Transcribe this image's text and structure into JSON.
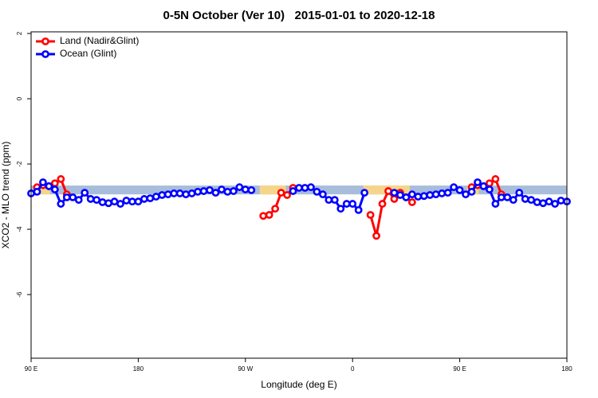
{
  "chart_data": {
    "type": "line",
    "title": "0-5N October (Ver 10)   2015-01-01 to 2020-12-18",
    "xlabel": "Longitude (deg E)",
    "ylabel": "XCO2 - MLO trend (ppm)",
    "xlim": [
      90,
      540
    ],
    "ylim": [
      -7.95,
      2.05
    ],
    "xticks": [
      {
        "value": 90,
        "label": "90 E"
      },
      {
        "value": 180,
        "label": "180"
      },
      {
        "value": 270,
        "label": "90 W"
      },
      {
        "value": 360,
        "label": "0"
      },
      {
        "value": 450,
        "label": "90 E"
      },
      {
        "value": 540,
        "label": "180"
      }
    ],
    "yticks": [
      2,
      0,
      -2,
      -4,
      -6
    ],
    "legend": "top-left",
    "bands": [
      {
        "color": "#a7bddb",
        "x": [
          90,
          540
        ],
        "y": [
          -2.93,
          -2.66
        ]
      },
      {
        "color": "#f6d58a",
        "x": [
          96,
          106
        ],
        "y": [
          -2.93,
          -2.66
        ]
      },
      {
        "color": "#f6d58a",
        "x": [
          282,
          304
        ],
        "y": [
          -2.93,
          -2.66
        ]
      },
      {
        "color": "#f6d58a",
        "x": [
          369,
          408
        ],
        "y": [
          -2.93,
          -2.66
        ]
      },
      {
        "color": "#f6d58a",
        "x": [
          456,
          466
        ],
        "y": [
          -2.93,
          -2.66
        ]
      }
    ],
    "x": [
      90,
      95,
      100,
      105,
      110,
      115,
      120,
      125,
      130,
      135,
      140,
      145,
      150,
      155,
      160,
      165,
      170,
      175,
      180,
      185,
      190,
      195,
      200,
      205,
      210,
      215,
      220,
      225,
      230,
      235,
      240,
      245,
      250,
      255,
      260,
      265,
      270,
      275,
      280,
      285,
      290,
      295,
      300,
      305,
      310,
      315,
      320,
      325,
      330,
      335,
      340,
      345,
      350,
      355,
      360,
      365,
      370,
      375,
      380,
      385,
      390,
      395,
      400,
      405,
      410,
      415,
      420,
      425,
      430,
      435,
      440,
      445,
      450,
      455,
      460,
      465,
      470,
      475,
      480,
      485,
      490,
      495,
      500,
      505,
      510,
      515,
      520,
      525,
      530,
      535,
      540
    ],
    "series": [
      {
        "name": "Land (Nadir&Glint)",
        "color": "#ff0000",
        "values": [
          null,
          -2.71,
          -2.65,
          -2.68,
          -2.59,
          -2.46,
          -2.93,
          null,
          null,
          null,
          null,
          null,
          null,
          null,
          null,
          null,
          null,
          null,
          null,
          null,
          null,
          null,
          null,
          null,
          null,
          null,
          null,
          null,
          null,
          null,
          null,
          null,
          null,
          null,
          null,
          null,
          null,
          null,
          null,
          -3.59,
          -3.56,
          -3.37,
          -2.88,
          -2.95,
          -2.73,
          null,
          null,
          null,
          null,
          null,
          null,
          null,
          null,
          null,
          null,
          null,
          null,
          -3.56,
          -4.2,
          -3.22,
          -2.83,
          -3.07,
          -2.88,
          -3.02,
          -3.17,
          null,
          null,
          null,
          null,
          null,
          null,
          null,
          null,
          null,
          -2.71,
          -2.65,
          -2.68,
          -2.59,
          -2.46,
          -2.93,
          null,
          null,
          null,
          null,
          null,
          null,
          null,
          null,
          null,
          null,
          null
        ]
      },
      {
        "name": "Ocean (Glint)",
        "color": "#0000ff",
        "values": [
          -2.9,
          -2.85,
          -2.56,
          -2.68,
          -2.78,
          -3.22,
          -3.02,
          -3.02,
          -3.1,
          -2.88,
          -3.07,
          -3.1,
          -3.17,
          -3.2,
          -3.15,
          -3.22,
          -3.12,
          -3.15,
          -3.15,
          -3.07,
          -3.05,
          -3.0,
          -2.95,
          -2.93,
          -2.9,
          -2.9,
          -2.93,
          -2.9,
          -2.85,
          -2.83,
          -2.8,
          -2.88,
          -2.78,
          -2.85,
          -2.83,
          -2.71,
          -2.78,
          -2.8,
          null,
          null,
          null,
          null,
          null,
          null,
          -2.83,
          -2.73,
          -2.73,
          -2.71,
          -2.85,
          -2.93,
          -3.1,
          -3.1,
          -3.37,
          -3.22,
          -3.22,
          -3.41,
          -2.88,
          null,
          null,
          null,
          null,
          -2.88,
          -2.95,
          -3.02,
          -2.93,
          -3.0,
          -2.98,
          -2.95,
          -2.93,
          -2.9,
          -2.88,
          -2.71,
          -2.8,
          -2.93,
          -2.85,
          -2.56,
          -2.68,
          -2.78,
          -3.22,
          -3.02,
          -3.02,
          -3.1,
          -2.88,
          -3.07,
          -3.1,
          -3.17,
          -3.2,
          -3.15,
          -3.22,
          -3.12,
          -3.15
        ]
      }
    ]
  }
}
